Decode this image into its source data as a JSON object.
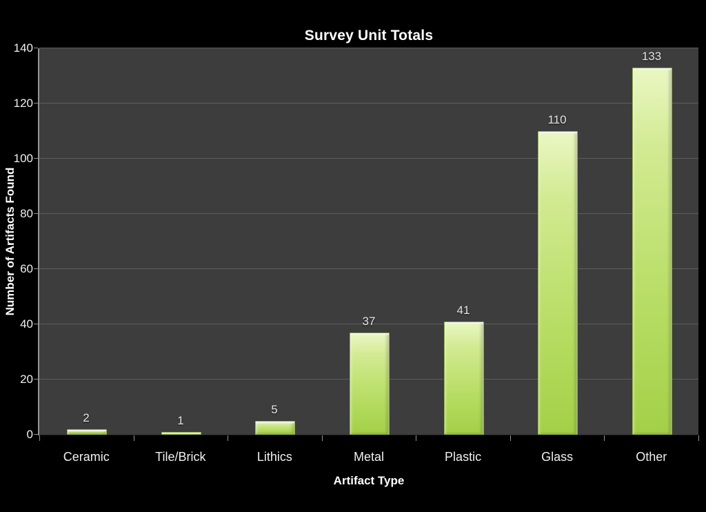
{
  "chart_data": {
    "type": "bar",
    "title": "Survey Unit Totals",
    "xlabel": "Artifact Type",
    "ylabel": "Number of Artifacts Found",
    "categories": [
      "Ceramic",
      "Tile/Brick",
      "Lithics",
      "Metal",
      "Plastic",
      "Glass",
      "Other"
    ],
    "values": [
      2,
      1,
      5,
      37,
      41,
      110,
      133
    ],
    "ylim": [
      0,
      140
    ],
    "ytick_step": 20,
    "ytick_labels": [
      "0",
      "20",
      "40",
      "60",
      "80",
      "100",
      "120",
      "140"
    ],
    "grid": true,
    "legend": false,
    "data_labels_shown": true,
    "colors": {
      "canvas_background": "#000000",
      "plot_background": "#3d3d3d",
      "gridline": "#5e5e5e",
      "axis_line": "#949494",
      "bar_top": "#eaf7c3",
      "bar_bottom": "#a3d048",
      "bar_border": "#91af42",
      "title_text": "#ffffff",
      "tick_text": "#f0f0f0",
      "value_label_text": "#e3e3e3"
    }
  }
}
